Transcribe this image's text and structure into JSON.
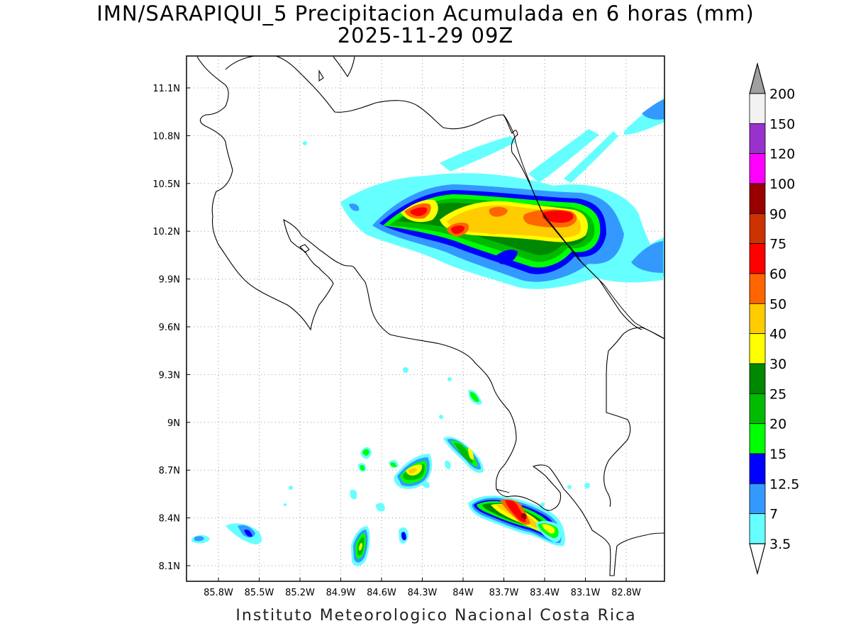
{
  "title": {
    "line1": "IMN/SARAPIQUI_5 Precipitacion Acumulada en 6 horas (mm)",
    "line2": "2025-11-29 09Z"
  },
  "credit": "Instituto Meteorologico Nacional Costa Rica",
  "map": {
    "lon_labels": [
      "85.8W",
      "85.5W",
      "85.2W",
      "84.9W",
      "84.6W",
      "84.3W",
      "84W",
      "83.7W",
      "83.4W",
      "83.1W",
      "82.8W"
    ],
    "lat_labels": [
      "11.1N",
      "10.8N",
      "10.5N",
      "10.2N",
      "9.9N",
      "9.6N",
      "9.3N",
      "9N",
      "8.7N",
      "8.4N",
      "8.1N"
    ],
    "grid": true
  },
  "colorbar": {
    "levels": [
      "200",
      "150",
      "120",
      "100",
      "90",
      "75",
      "60",
      "50",
      "40",
      "30",
      "25",
      "20",
      "15",
      "12.5",
      "7",
      "3.5"
    ],
    "colors": [
      "#a0a0a0",
      "#f2f2f2",
      "#9932cc",
      "#ff00ff",
      "#990000",
      "#cc3300",
      "#ff0000",
      "#ff6600",
      "#ffcc00",
      "#ffff00",
      "#008800",
      "#00bb00",
      "#00ff00",
      "#0000ff",
      "#3399ff",
      "#66ffff",
      "#ffffff"
    ]
  }
}
